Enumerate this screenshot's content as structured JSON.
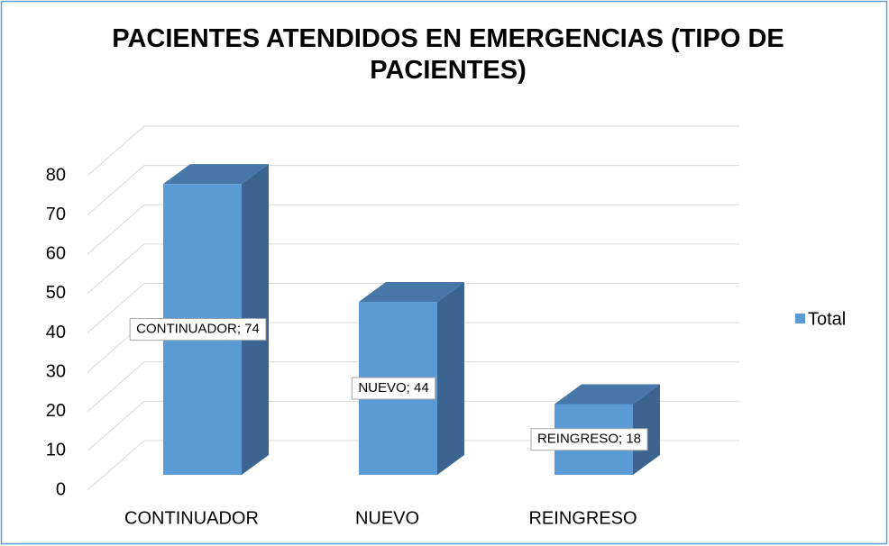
{
  "chart_data": {
    "type": "bar3d",
    "title": "PACIENTES ATENDIDOS EN EMERGENCIAS (TIPO DE PACIENTES)",
    "categories": [
      "CONTINUADOR",
      "NUEVO",
      "REINGRESO"
    ],
    "series": [
      {
        "name": "Total",
        "color": "#5b9bd5",
        "values": [
          74,
          44,
          18
        ],
        "value_labels": [
          "CONTINUADOR; 74",
          "NUEVO; 44",
          "REINGRESO; 18"
        ]
      }
    ],
    "ylim": [
      0,
      80
    ],
    "yticks": [
      0,
      10,
      20,
      30,
      40,
      50,
      60,
      70,
      80
    ],
    "grid": true,
    "legend": "right"
  }
}
